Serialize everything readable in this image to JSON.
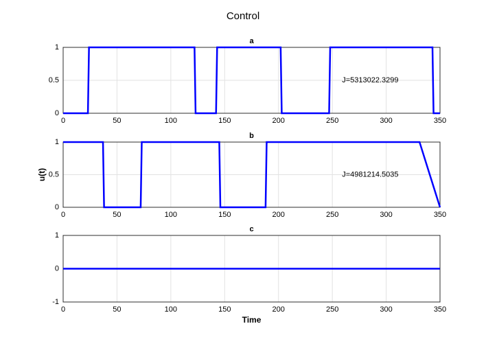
{
  "title": "Control",
  "chart_data": [
    {
      "type": "line",
      "title": "a",
      "x": [
        0,
        23,
        24,
        122,
        123,
        142,
        143,
        202,
        203,
        247,
        248,
        343,
        344,
        350
      ],
      "series": [
        {
          "color": "#0000ff",
          "values": [
            0,
            0,
            1,
            1,
            0,
            0,
            1,
            1,
            0,
            0,
            1,
            1,
            0,
            0
          ]
        }
      ],
      "xlim": [
        0,
        350
      ],
      "xticks": [
        0,
        50,
        100,
        150,
        200,
        250,
        300,
        350
      ],
      "ylim": [
        0,
        1
      ],
      "yticks": [
        0,
        0.5,
        1
      ],
      "grid": true,
      "annotation": "J=5313022.3299"
    },
    {
      "type": "line",
      "title": "b",
      "ylabel": "u(t)",
      "x": [
        0,
        37,
        38,
        72,
        73,
        145,
        146,
        188,
        189,
        331,
        350
      ],
      "series": [
        {
          "color": "#0000ff",
          "values": [
            1,
            1,
            0,
            0,
            1,
            1,
            0,
            0,
            1,
            1,
            0
          ]
        }
      ],
      "xlim": [
        0,
        350
      ],
      "xticks": [
        0,
        50,
        100,
        150,
        200,
        250,
        300,
        350
      ],
      "ylim": [
        0,
        1
      ],
      "yticks": [
        0,
        0.5,
        1
      ],
      "grid": true,
      "annotation": "J=4981214.5035"
    },
    {
      "type": "line",
      "title": "c",
      "xlabel": "Time",
      "x": [
        0,
        350
      ],
      "series": [
        {
          "color": "#0000ff",
          "values": [
            0,
            0
          ]
        }
      ],
      "xlim": [
        0,
        350
      ],
      "xticks": [
        0,
        50,
        100,
        150,
        200,
        250,
        300,
        350
      ],
      "ylim": [
        -1,
        1
      ],
      "yticks": [
        -1,
        0,
        1
      ],
      "grid": true
    }
  ]
}
